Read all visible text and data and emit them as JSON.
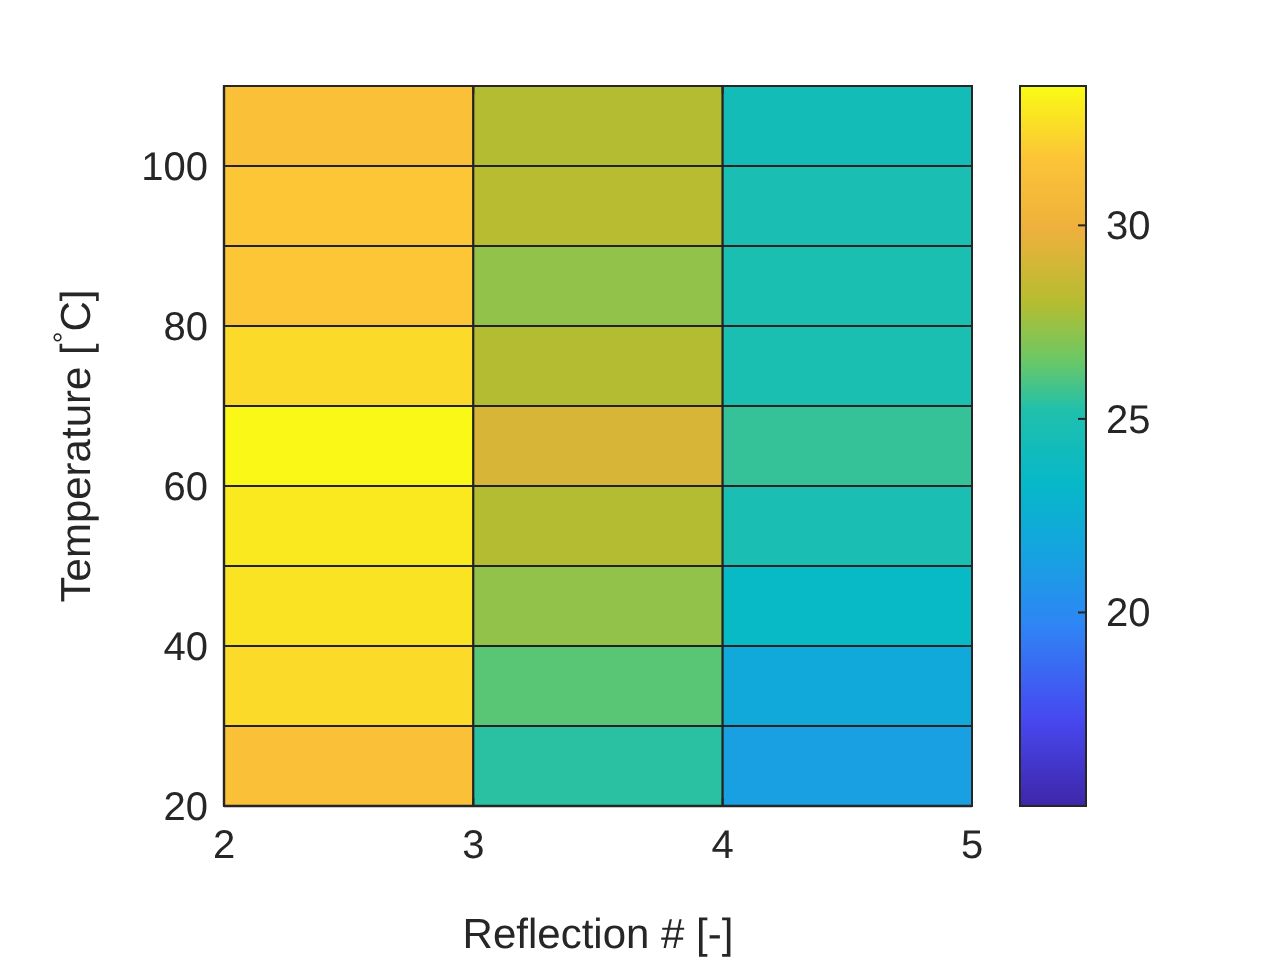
{
  "chart_data": {
    "type": "heatmap",
    "xlabel": "Reflection # [-]",
    "ylabel": "Temperature [$^{°}$C]",
    "xlim": [
      2,
      5
    ],
    "xticks": [
      2,
      3,
      4,
      5
    ],
    "ylim": [
      20,
      110
    ],
    "yticks": [
      20,
      40,
      60,
      80,
      100
    ],
    "clim": [
      15,
      33.6
    ],
    "cticks": [
      20,
      25,
      30
    ],
    "cells": [
      [
        31.5,
        28,
        24.4
      ],
      [
        31.8,
        28.1,
        24.8
      ],
      [
        31.8,
        27.3,
        24.9
      ],
      [
        32.5,
        28,
        24.9
      ],
      [
        33.5,
        29.1,
        25.6
      ],
      [
        33,
        28,
        24.8
      ],
      [
        32.8,
        27.3,
        23.5
      ],
      [
        32.5,
        26.2,
        22
      ],
      [
        31.5,
        25.4,
        21.3
      ]
    ]
  }
}
